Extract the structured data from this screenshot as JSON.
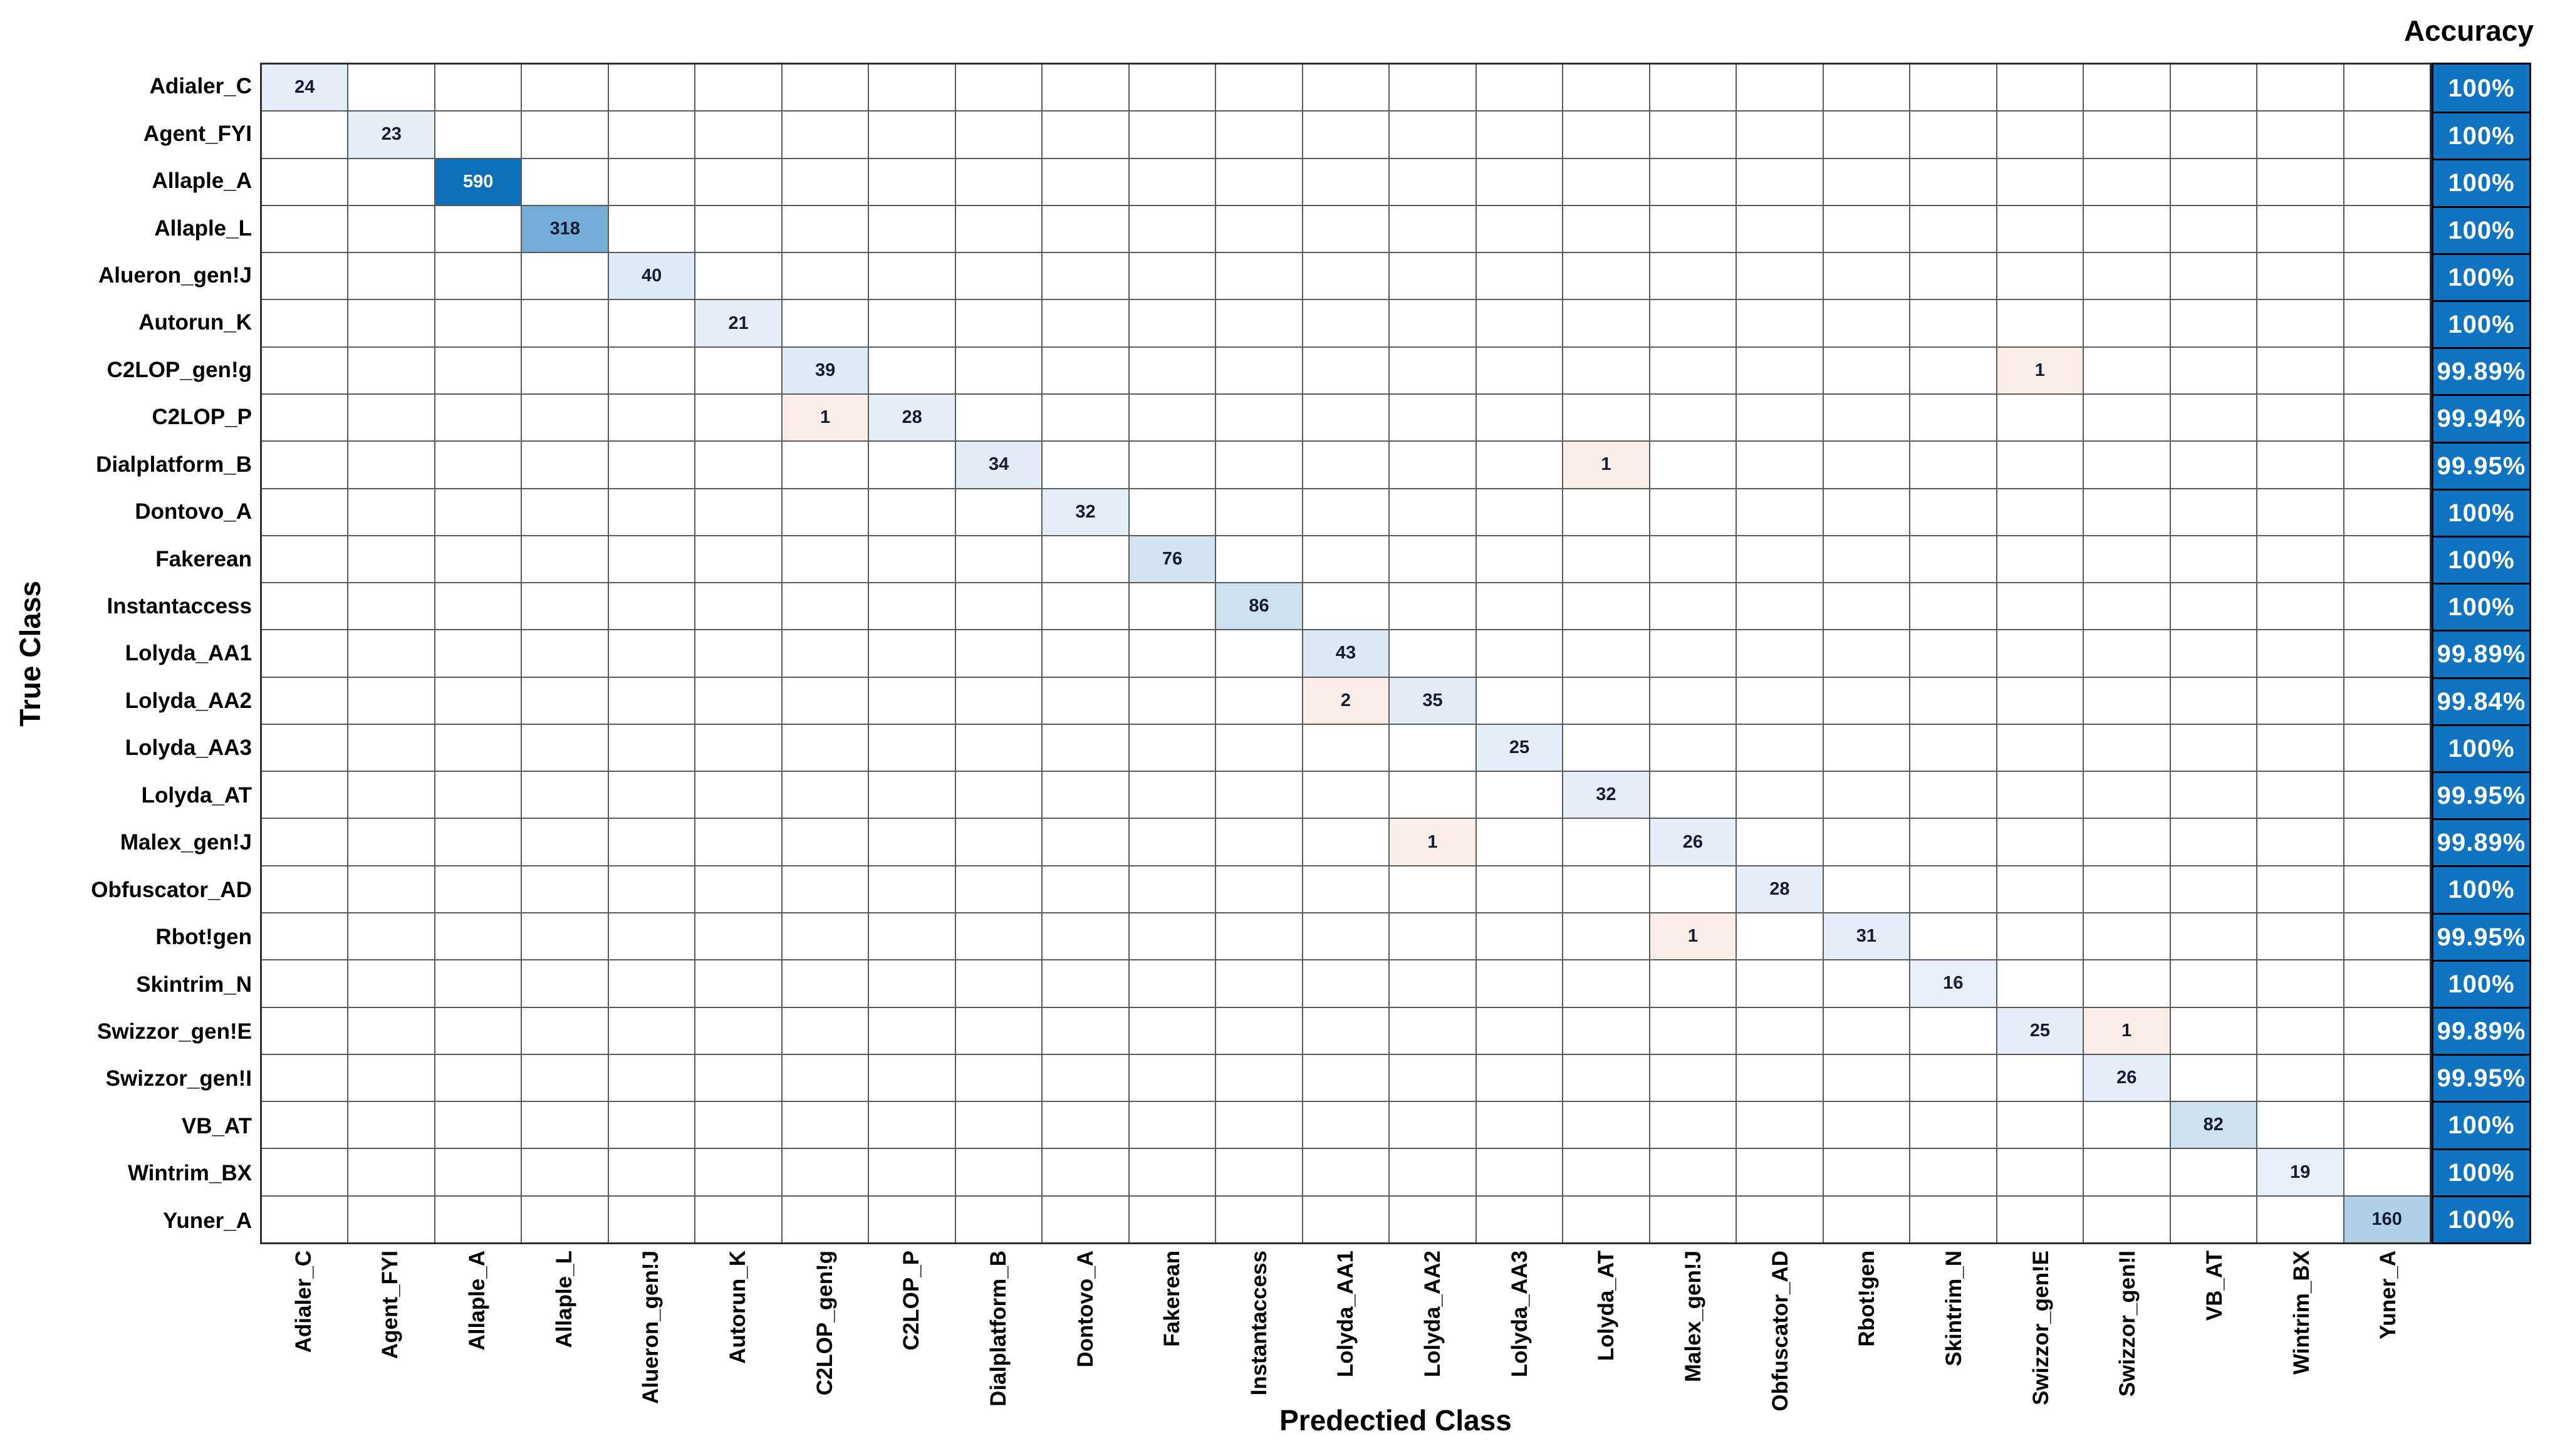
{
  "colors": {
    "diag_low": "#eef4fb",
    "diag_high": "#0b70b8",
    "offdiag_bg": "#fbeee7",
    "accuracy_bg": "#0e74c1",
    "accuracy_text": "#ffffff",
    "cell_text": "#141c35",
    "cell_text_light": "#ffffff",
    "grid_line": "#5a5a5a",
    "label_text": "#000000"
  },
  "chart_data": {
    "type": "heatmap",
    "subtype": "confusion-matrix",
    "title": "",
    "xlabel": "Predectied Class",
    "ylabel": "True Class",
    "grid": true,
    "legend_position": "none",
    "classes": [
      "Adialer_C",
      "Agent_FYI",
      "Allaple_A",
      "Allaple_L",
      "Alueron_gen!J",
      "Autorun_K",
      "C2LOP_gen!g",
      "C2LOP_P",
      "Dialplatform_B",
      "Dontovo_A",
      "Fakerean",
      "Instantaccess",
      "Lolyda_AA1",
      "Lolyda_AA2",
      "Lolyda_AA3",
      "Lolyda_AT",
      "Malex_gen!J",
      "Obfuscator_AD",
      "Rbot!gen",
      "Skintrim_N",
      "Swizzor_gen!E",
      "Swizzor_gen!I",
      "VB_AT",
      "Wintrim_BX",
      "Yuner_A"
    ],
    "cells_format": "[true_class_row, predicted_class_col, count] zero-indexed; empty cells are zero",
    "cells": [
      [
        0,
        0,
        24
      ],
      [
        1,
        1,
        23
      ],
      [
        2,
        2,
        590
      ],
      [
        3,
        3,
        318
      ],
      [
        4,
        4,
        40
      ],
      [
        5,
        5,
        21
      ],
      [
        6,
        6,
        39
      ],
      [
        6,
        20,
        1
      ],
      [
        7,
        6,
        1
      ],
      [
        7,
        7,
        28
      ],
      [
        8,
        8,
        34
      ],
      [
        8,
        15,
        1
      ],
      [
        9,
        9,
        32
      ],
      [
        10,
        10,
        76
      ],
      [
        11,
        11,
        86
      ],
      [
        12,
        12,
        43
      ],
      [
        13,
        12,
        2
      ],
      [
        13,
        13,
        35
      ],
      [
        14,
        14,
        25
      ],
      [
        15,
        15,
        32
      ],
      [
        16,
        13,
        1
      ],
      [
        16,
        16,
        26
      ],
      [
        17,
        17,
        28
      ],
      [
        18,
        16,
        1
      ],
      [
        18,
        18,
        31
      ],
      [
        19,
        19,
        16
      ],
      [
        20,
        20,
        25
      ],
      [
        20,
        21,
        1
      ],
      [
        21,
        21,
        26
      ],
      [
        22,
        22,
        82
      ],
      [
        23,
        23,
        19
      ],
      [
        24,
        24,
        160
      ]
    ],
    "accuracy_column": {
      "label": "Accuracy",
      "values": [
        "100%",
        "100%",
        "100%",
        "100%",
        "100%",
        "100%",
        "99.89%",
        "99.94%",
        "99.95%",
        "100%",
        "100%",
        "100%",
        "99.89%",
        "99.84%",
        "100%",
        "99.95%",
        "99.89%",
        "100%",
        "99.95%",
        "100%",
        "99.89%",
        "99.95%",
        "100%",
        "100%",
        "100%"
      ]
    }
  }
}
